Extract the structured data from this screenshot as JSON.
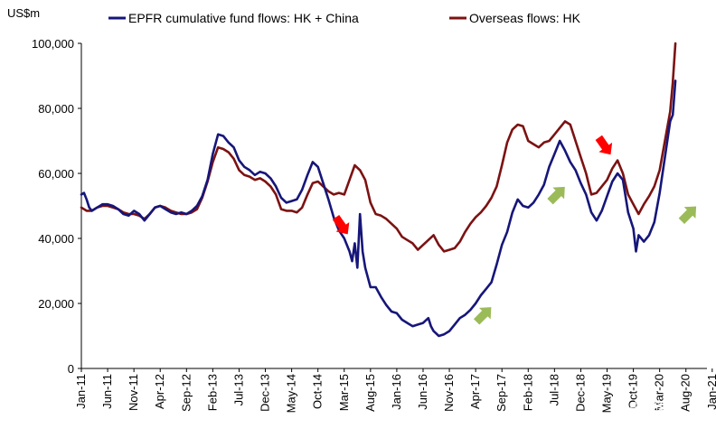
{
  "chart_data": {
    "type": "line",
    "title": "",
    "ylabel": "US$m",
    "xlabel": "",
    "ylim": [
      0,
      100000
    ],
    "y_ticks": [
      "0",
      "20,000",
      "40,000",
      "60,000",
      "80,000",
      "100,000"
    ],
    "x_ticks": [
      "Jan-11",
      "Jun-11",
      "Nov-11",
      "Apr-12",
      "Sep-12",
      "Feb-13",
      "Jul-13",
      "Dec-13",
      "May-14",
      "Oct-14",
      "Mar-15",
      "Aug-15",
      "Jan-16",
      "Jun-16",
      "Nov-16",
      "Apr-17",
      "Sep-17",
      "Feb-18",
      "Jul-18",
      "Dec-18",
      "May-19",
      "Oct-19",
      "Mar-20",
      "Aug-20",
      "Jan-21"
    ],
    "legend_position": "top",
    "grid": false,
    "series": [
      {
        "name": "EPFR cumulative fund flows: HK + China",
        "color": "#16167a",
        "points": [
          [
            0,
            53500
          ],
          [
            0.5,
            54000
          ],
          [
            1,
            52000
          ],
          [
            1.5,
            49500
          ],
          [
            2,
            48500
          ],
          [
            3,
            49500
          ],
          [
            4,
            50500
          ],
          [
            5,
            50500
          ],
          [
            6,
            50000
          ],
          [
            7,
            49000
          ],
          [
            8,
            47500
          ],
          [
            9,
            47000
          ],
          [
            10,
            48500
          ],
          [
            11,
            47500
          ],
          [
            12,
            45500
          ],
          [
            13,
            47500
          ],
          [
            14,
            49500
          ],
          [
            15,
            50000
          ],
          [
            16,
            49000
          ],
          [
            17,
            48000
          ],
          [
            18,
            47500
          ],
          [
            19,
            48000
          ],
          [
            20,
            47500
          ],
          [
            21,
            48500
          ],
          [
            22,
            50000
          ],
          [
            23,
            53000
          ],
          [
            24,
            58000
          ],
          [
            25,
            66000
          ],
          [
            26,
            72000
          ],
          [
            27,
            71500
          ],
          [
            28,
            69500
          ],
          [
            29,
            68000
          ],
          [
            30,
            64000
          ],
          [
            31,
            62000
          ],
          [
            32,
            61000
          ],
          [
            33,
            59500
          ],
          [
            34,
            60500
          ],
          [
            35,
            60000
          ],
          [
            36,
            58500
          ],
          [
            37,
            56000
          ],
          [
            38,
            52500
          ],
          [
            39,
            51000
          ],
          [
            40,
            51500
          ],
          [
            41,
            52000
          ],
          [
            42,
            55000
          ],
          [
            43,
            59500
          ],
          [
            44,
            63500
          ],
          [
            45,
            62000
          ],
          [
            46,
            57000
          ],
          [
            47,
            52000
          ],
          [
            48,
            46500
          ],
          [
            49,
            42500
          ],
          [
            50,
            40000
          ],
          [
            51,
            36000
          ],
          [
            51.5,
            33000
          ],
          [
            52,
            38500
          ],
          [
            52.5,
            31000
          ],
          [
            53,
            47500
          ],
          [
            53.5,
            36000
          ],
          [
            54,
            31000
          ],
          [
            55,
            25000
          ],
          [
            56,
            25000
          ],
          [
            57,
            22000
          ],
          [
            58,
            19500
          ],
          [
            59,
            17500
          ],
          [
            60,
            17000
          ],
          [
            61,
            15000
          ],
          [
            62,
            14000
          ],
          [
            63,
            13000
          ],
          [
            64,
            13500
          ],
          [
            65,
            14000
          ],
          [
            66,
            15500
          ],
          [
            66.5,
            13000
          ],
          [
            67,
            11500
          ],
          [
            68,
            10000
          ],
          [
            69,
            10500
          ],
          [
            70,
            11500
          ],
          [
            71,
            13500
          ],
          [
            72,
            15500
          ],
          [
            73,
            16500
          ],
          [
            74,
            18000
          ],
          [
            75,
            20000
          ],
          [
            76,
            22500
          ],
          [
            77,
            24500
          ],
          [
            78,
            26500
          ],
          [
            79,
            32000
          ],
          [
            80,
            38000
          ],
          [
            81,
            42000
          ],
          [
            82,
            48000
          ],
          [
            83,
            52000
          ],
          [
            84,
            50000
          ],
          [
            85,
            49500
          ],
          [
            86,
            51000
          ],
          [
            87,
            53500
          ],
          [
            88,
            56500
          ],
          [
            89,
            62000
          ],
          [
            90,
            66000
          ],
          [
            91,
            70000
          ],
          [
            92,
            67000
          ],
          [
            93,
            63500
          ],
          [
            94,
            61000
          ],
          [
            95,
            57000
          ],
          [
            96,
            53500
          ],
          [
            97,
            48000
          ],
          [
            98,
            45500
          ],
          [
            99,
            48500
          ],
          [
            100,
            53000
          ],
          [
            101,
            57500
          ],
          [
            102,
            60000
          ],
          [
            103,
            58000
          ],
          [
            104,
            48000
          ],
          [
            105,
            43000
          ],
          [
            105.5,
            36000
          ],
          [
            106,
            41000
          ],
          [
            107,
            39000
          ],
          [
            108,
            41000
          ],
          [
            109,
            45000
          ],
          [
            110,
            54000
          ],
          [
            111,
            65000
          ],
          [
            112,
            76000
          ],
          [
            112.5,
            78000
          ],
          [
            113,
            88500
          ]
        ]
      },
      {
        "name": "Overseas flows: HK",
        "color": "#7c1212",
        "points": [
          [
            0,
            49500
          ],
          [
            1,
            48500
          ],
          [
            2,
            48500
          ],
          [
            3,
            49500
          ],
          [
            4,
            50000
          ],
          [
            5,
            50000
          ],
          [
            6,
            49500
          ],
          [
            7,
            49000
          ],
          [
            8,
            48000
          ],
          [
            9,
            47500
          ],
          [
            10,
            47500
          ],
          [
            11,
            47000
          ],
          [
            12,
            46000
          ],
          [
            13,
            47500
          ],
          [
            14,
            49500
          ],
          [
            15,
            50000
          ],
          [
            16,
            49500
          ],
          [
            17,
            48500
          ],
          [
            18,
            48000
          ],
          [
            19,
            47500
          ],
          [
            20,
            47500
          ],
          [
            21,
            48000
          ],
          [
            22,
            49000
          ],
          [
            23,
            52500
          ],
          [
            24,
            57500
          ],
          [
            25,
            63500
          ],
          [
            26,
            68000
          ],
          [
            27,
            67500
          ],
          [
            28,
            66500
          ],
          [
            29,
            64500
          ],
          [
            30,
            61000
          ],
          [
            31,
            59500
          ],
          [
            32,
            59000
          ],
          [
            33,
            58000
          ],
          [
            34,
            58500
          ],
          [
            35,
            57500
          ],
          [
            36,
            56000
          ],
          [
            37,
            53500
          ],
          [
            38,
            49000
          ],
          [
            39,
            48500
          ],
          [
            40,
            48500
          ],
          [
            41,
            48000
          ],
          [
            42,
            49500
          ],
          [
            43,
            53500
          ],
          [
            44,
            57000
          ],
          [
            45,
            57500
          ],
          [
            46,
            56000
          ],
          [
            47,
            54500
          ],
          [
            48,
            53500
          ],
          [
            49,
            54000
          ],
          [
            50,
            53500
          ],
          [
            51,
            58000
          ],
          [
            52,
            62500
          ],
          [
            53,
            61000
          ],
          [
            54,
            58000
          ],
          [
            55,
            51000
          ],
          [
            56,
            47500
          ],
          [
            57,
            47000
          ],
          [
            58,
            46000
          ],
          [
            59,
            44500
          ],
          [
            60,
            43000
          ],
          [
            61,
            40500
          ],
          [
            62,
            39500
          ],
          [
            63,
            38500
          ],
          [
            64,
            36500
          ],
          [
            65,
            38000
          ],
          [
            66,
            39500
          ],
          [
            67,
            41000
          ],
          [
            68,
            38000
          ],
          [
            69,
            36000
          ],
          [
            70,
            36500
          ],
          [
            71,
            37000
          ],
          [
            72,
            39000
          ],
          [
            73,
            42000
          ],
          [
            74,
            44500
          ],
          [
            75,
            46500
          ],
          [
            76,
            48000
          ],
          [
            77,
            50000
          ],
          [
            78,
            52500
          ],
          [
            79,
            56000
          ],
          [
            80,
            62500
          ],
          [
            81,
            69500
          ],
          [
            82,
            73500
          ],
          [
            83,
            75000
          ],
          [
            84,
            74500
          ],
          [
            85,
            70000
          ],
          [
            86,
            69000
          ],
          [
            87,
            68000
          ],
          [
            88,
            69500
          ],
          [
            89,
            70000
          ],
          [
            90,
            72000
          ],
          [
            91,
            74000
          ],
          [
            92,
            76000
          ],
          [
            93,
            75000
          ],
          [
            94,
            70000
          ],
          [
            95,
            65000
          ],
          [
            96,
            60000
          ],
          [
            97,
            53500
          ],
          [
            98,
            54000
          ],
          [
            99,
            56000
          ],
          [
            100,
            58000
          ],
          [
            101,
            61500
          ],
          [
            102,
            64000
          ],
          [
            103,
            60000
          ],
          [
            104,
            53500
          ],
          [
            105,
            50500
          ],
          [
            106,
            47500
          ],
          [
            107,
            50500
          ],
          [
            108,
            53000
          ],
          [
            109,
            56000
          ],
          [
            110,
            61000
          ],
          [
            111,
            70000
          ],
          [
            112,
            79000
          ],
          [
            112.5,
            88000
          ],
          [
            113,
            100000
          ]
        ]
      }
    ],
    "annotations": [
      {
        "kind": "arrow-down",
        "color": "#ff0000",
        "x": 49.5,
        "y": 44000
      },
      {
        "kind": "arrow-up",
        "color": "#9bbb59",
        "x": 76.5,
        "y": 16500
      },
      {
        "kind": "arrow-up",
        "color": "#9bbb59",
        "x": 90.5,
        "y": 53500
      },
      {
        "kind": "arrow-down",
        "color": "#ff0000",
        "x": 99.5,
        "y": 68500
      },
      {
        "kind": "arrow-up",
        "color": "#9bbb59",
        "x": 115.5,
        "y": 47500
      }
    ]
  },
  "watermark": {
    "text": "中金策略",
    "icon": "wechat-icon"
  }
}
